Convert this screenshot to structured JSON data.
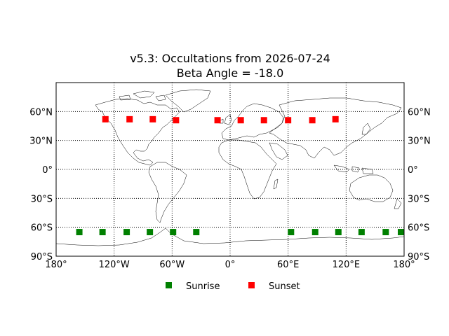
{
  "chart_data": {
    "type": "scatter",
    "title_line1": "v5.3: Occultations from 2026-07-24",
    "title_line2": "Beta Angle = -18.0",
    "xlabel": "",
    "ylabel": "",
    "xlim": [
      -180,
      180
    ],
    "ylim": [
      -90,
      90
    ],
    "grid": true,
    "legend_position": "bottom-center",
    "x_ticks": [
      {
        "value": -180,
        "label": "180°"
      },
      {
        "value": -120,
        "label": "120°W"
      },
      {
        "value": -60,
        "label": "60°W"
      },
      {
        "value": 0,
        "label": "0°"
      },
      {
        "value": 60,
        "label": "60°E"
      },
      {
        "value": 120,
        "label": "120°E"
      },
      {
        "value": 180,
        "label": "180°"
      }
    ],
    "y_ticks": [
      {
        "value": 60,
        "label": "60°N"
      },
      {
        "value": 30,
        "label": "30°N"
      },
      {
        "value": 0,
        "label": "0°"
      },
      {
        "value": -30,
        "label": "30°S"
      },
      {
        "value": -60,
        "label": "60°S"
      },
      {
        "value": -90,
        "label": "90°S"
      }
    ],
    "series": [
      {
        "name": "Sunrise",
        "color": "#008000",
        "marker": "square",
        "points": [
          {
            "lon": -156,
            "lat": -65
          },
          {
            "lon": -132,
            "lat": -65
          },
          {
            "lon": -107,
            "lat": -65
          },
          {
            "lon": -83,
            "lat": -65
          },
          {
            "lon": -59,
            "lat": -65
          },
          {
            "lon": -35,
            "lat": -65
          },
          {
            "lon": 63,
            "lat": -65
          },
          {
            "lon": 88,
            "lat": -65
          },
          {
            "lon": 112,
            "lat": -65
          },
          {
            "lon": 136,
            "lat": -65
          },
          {
            "lon": 161,
            "lat": -65
          },
          {
            "lon": 180,
            "lat": -65
          }
        ]
      },
      {
        "name": "Sunset",
        "color": "#ff0000",
        "marker": "square",
        "points": [
          {
            "lon": -129,
            "lat": 52
          },
          {
            "lon": -104,
            "lat": 52
          },
          {
            "lon": -80,
            "lat": 52
          },
          {
            "lon": -56,
            "lat": 51
          },
          {
            "lon": -13,
            "lat": 51
          },
          {
            "lon": 11,
            "lat": 51
          },
          {
            "lon": 35,
            "lat": 51
          },
          {
            "lon": 60,
            "lat": 51
          },
          {
            "lon": 85,
            "lat": 51
          },
          {
            "lon": 109,
            "lat": 52
          }
        ]
      }
    ]
  }
}
